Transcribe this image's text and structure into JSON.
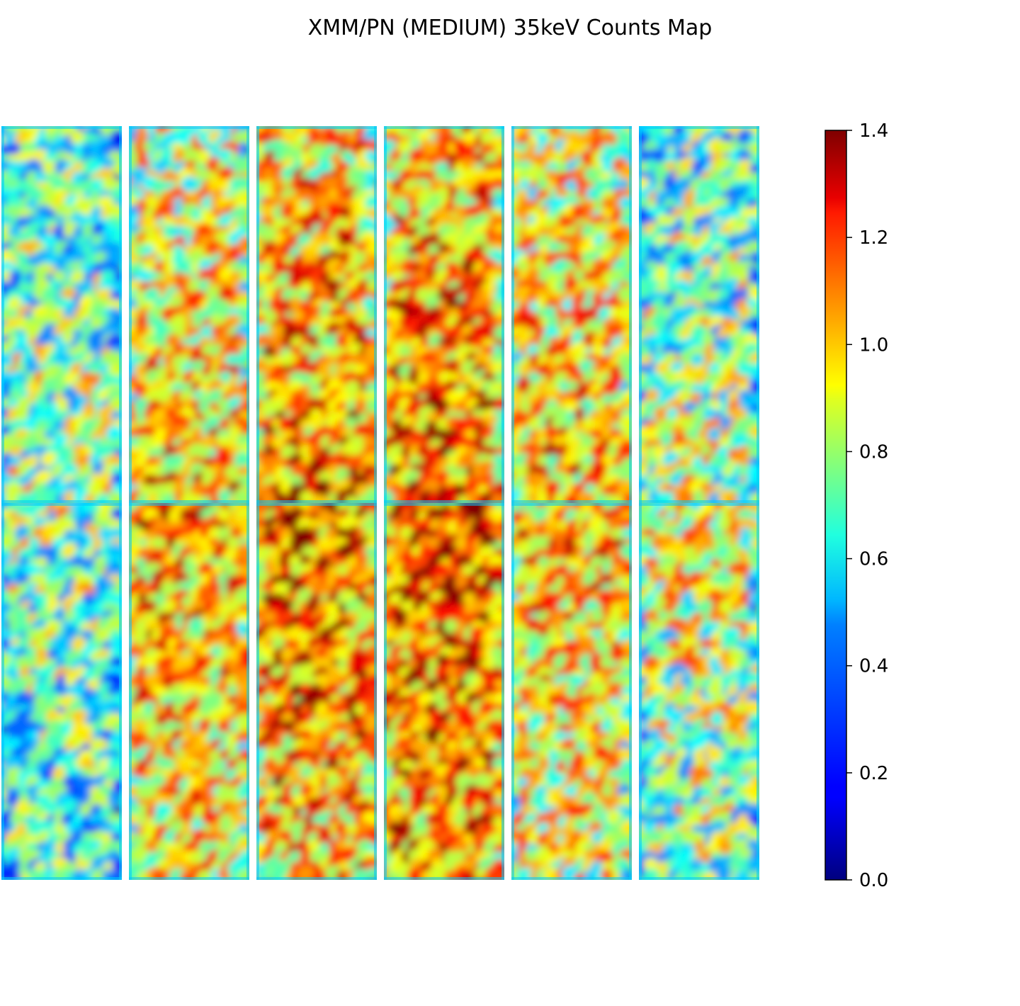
{
  "chart_data": {
    "type": "heatmap",
    "title": "XMM/PN (MEDIUM) 35keV Counts Map",
    "xlabel": "",
    "ylabel": "",
    "grid": false,
    "axes_visible": false,
    "colormap": "jet",
    "colorbar": {
      "vmin": 0.0,
      "vmax": 1.4,
      "ticks": [
        0.0,
        0.2,
        0.4,
        0.6,
        0.8,
        1.0,
        1.2,
        1.4
      ],
      "tick_labels": [
        "0.0",
        "0.2",
        "0.4",
        "0.6",
        "0.8",
        "1.0",
        "1.2",
        "1.4"
      ],
      "placement": "right"
    },
    "ccd_columns": 6,
    "ccd_rows": 2,
    "typical_level_by_ccd": [
      [
        0.75,
        0.98,
        1.1,
        1.12,
        0.98,
        0.78
      ],
      [
        0.72,
        1.05,
        1.15,
        1.18,
        1.0,
        0.85
      ]
    ],
    "edge_level": 0.45
  }
}
